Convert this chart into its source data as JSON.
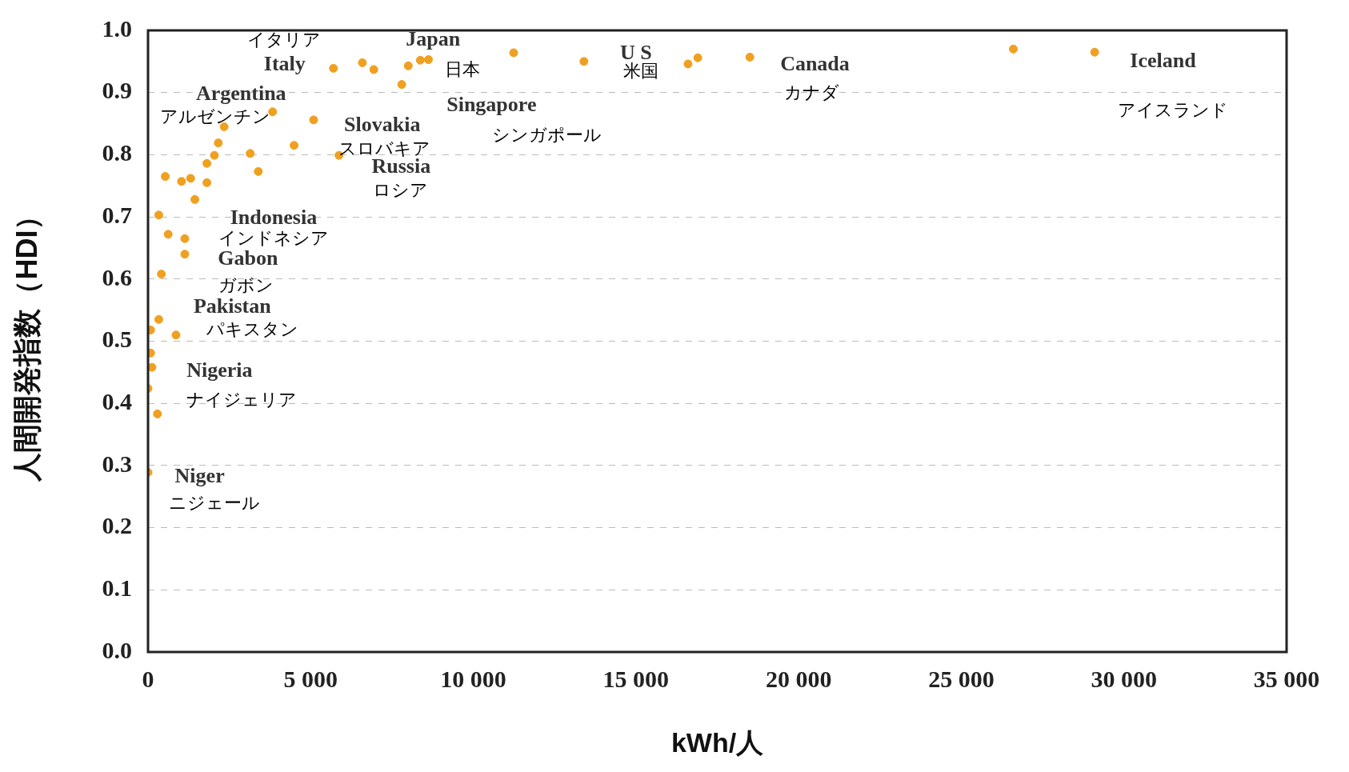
{
  "chart_data": {
    "type": "scatter",
    "xlabel": "kWh/人",
    "ylabel": "人間開発指数（HDI）",
    "x": [
      5700,
      6590,
      6940,
      8000,
      8370,
      8620,
      7800,
      11240,
      13400,
      16600,
      16900,
      18500,
      26600,
      29100,
      3830,
      5090,
      2340,
      2160,
      4490,
      3140,
      2040,
      1810,
      5870,
      3390,
      530,
      1030,
      1310,
      1810,
      1440,
      330,
      620,
      1130,
      1130,
      410,
      330,
      80,
      860,
      80,
      120,
      0,
      290,
      0
    ],
    "series": [
      {
        "color": "#f0a020",
        "values": [
          0.939,
          0.948,
          0.937,
          0.943,
          0.952,
          0.953,
          0.913,
          0.964,
          0.95,
          0.946,
          0.956,
          0.957,
          0.97,
          0.965,
          0.869,
          0.856,
          0.845,
          0.819,
          0.815,
          0.802,
          0.799,
          0.786,
          0.799,
          0.773,
          0.765,
          0.757,
          0.762,
          0.755,
          0.728,
          0.703,
          0.672,
          0.665,
          0.64,
          0.608,
          0.535,
          0.518,
          0.51,
          0.481,
          0.458,
          0.424,
          0.383,
          0.289
        ]
      }
    ],
    "marker": "circle",
    "grid": "y",
    "legend": false,
    "xlim": [
      0,
      35000
    ],
    "xticks": [
      0,
      {
        "value": 5000,
        "label": "5 000"
      },
      {
        "value": 10000,
        "label": "10 000"
      },
      {
        "value": 15000,
        "label": "15 000"
      },
      {
        "value": 20000,
        "label": "20 000"
      },
      {
        "value": 25000,
        "label": "25 000"
      },
      {
        "value": 30000,
        "label": "30 000"
      },
      {
        "value": 35000,
        "label": "35 000"
      }
    ],
    "ylim": [
      0,
      1
    ],
    "yticks": [
      {
        "value": 0,
        "label": "0.0"
      },
      0.1,
      0.2,
      0.3,
      0.4,
      0.5,
      0.6,
      0.7,
      0.8,
      0.9,
      {
        "value": 1,
        "label": "1.0"
      }
    ],
    "annotations": [
      "Italy",
      "イタリア",
      "Japan",
      "日本",
      "Argentina",
      "アルゼンチン",
      "Singapore",
      "シンガポール",
      "Slovakia",
      "スロバキア",
      "Russia",
      "ロシア",
      "U S",
      "米国",
      "Canada",
      "カナダ",
      "Iceland",
      "アイスランド",
      "Indonesia",
      "インドネシア",
      "Gabon",
      "ガボン",
      "Pakistan",
      "パキスタン",
      "Nigeria",
      "ナイジェリア",
      "Niger",
      "ニジェール"
    ]
  }
}
